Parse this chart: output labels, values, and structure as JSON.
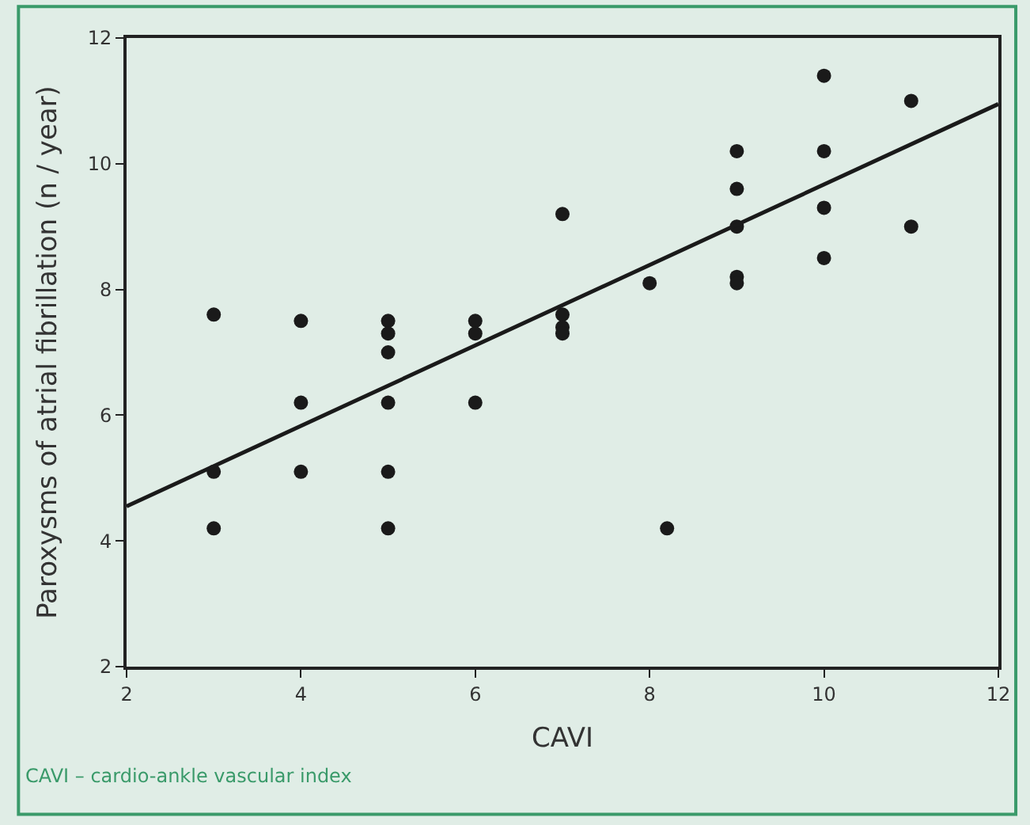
{
  "chart_data": {
    "type": "scatter",
    "xlabel": "CAVI",
    "ylabel": "Paroxysms of atrial fibrillation (n / year)",
    "xlim": [
      2,
      12
    ],
    "xticks": [
      2,
      4,
      6,
      8,
      10,
      12
    ],
    "ylim": [
      2,
      12
    ],
    "yticks": [
      2,
      4,
      6,
      8,
      10,
      12
    ],
    "grid": false,
    "series": [
      {
        "color": "#1a1a1a",
        "marker": "circle",
        "x": [
          3,
          3,
          3,
          4,
          4,
          4,
          5,
          5,
          5,
          5,
          5,
          5,
          6,
          6,
          6,
          7,
          7,
          7,
          7,
          8,
          8.2,
          9,
          9,
          9,
          9,
          9,
          10,
          10,
          10,
          10,
          11,
          11
        ],
        "values": [
          7.6,
          5.1,
          4.2,
          7.5,
          6.2,
          5.1,
          7.5,
          7.3,
          7.0,
          6.2,
          5.1,
          4.2,
          7.5,
          7.3,
          6.2,
          9.2,
          7.6,
          7.4,
          7.3,
          8.1,
          4.2,
          10.2,
          9.6,
          9.0,
          8.2,
          8.1,
          11.4,
          10.2,
          9.3,
          8.5,
          11.0,
          9.0
        ]
      },
      {
        "type": "line",
        "color": "#1a1a1a",
        "x": [
          2,
          12
        ],
        "values": [
          4.55,
          10.95
        ],
        "line_style": "solid"
      }
    ],
    "annotations": [
      "CAVI – cardio-ankle vascular index"
    ]
  }
}
